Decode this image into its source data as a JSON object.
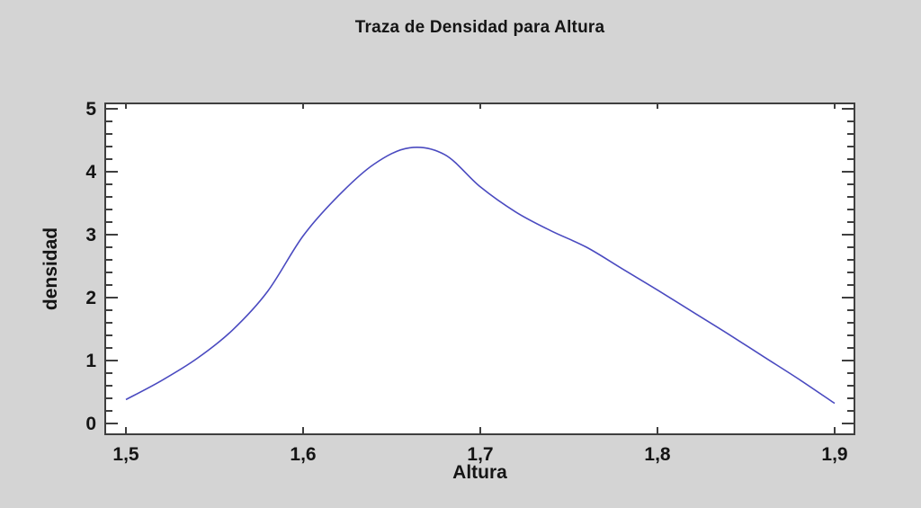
{
  "chart_data": {
    "type": "line",
    "title": "Traza de Densidad para Altura",
    "xlabel": "Altura",
    "ylabel": "densidad",
    "xlim": [
      1.5,
      1.9
    ],
    "ylim": [
      0,
      5
    ],
    "grid": false,
    "legend": false,
    "line_color": "#4a4ac0",
    "frame_color": "#3f3f3f",
    "background_color": "#d4d4d4",
    "panel_color": "#ffffff",
    "x_ticks": {
      "values": [
        1.5,
        1.6,
        1.7,
        1.8,
        1.9
      ],
      "labels": [
        "1,5",
        "1,6",
        "1,7",
        "1,8",
        "1,9"
      ]
    },
    "y_ticks": {
      "values": [
        0,
        1,
        2,
        3,
        4,
        5
      ],
      "labels": [
        "0",
        "1",
        "2",
        "3",
        "4",
        "5"
      ]
    },
    "y_minor_step": 0.2,
    "series": [
      {
        "name": "densidad",
        "x": [
          1.5,
          1.52,
          1.54,
          1.56,
          1.58,
          1.6,
          1.62,
          1.64,
          1.66,
          1.68,
          1.7,
          1.72,
          1.74,
          1.76,
          1.78,
          1.8,
          1.82,
          1.84,
          1.86,
          1.88,
          1.9
        ],
        "y": [
          0.38,
          0.68,
          1.03,
          1.48,
          2.1,
          2.98,
          3.62,
          4.12,
          4.38,
          4.27,
          3.76,
          3.36,
          3.06,
          2.8,
          2.46,
          2.12,
          1.77,
          1.42,
          1.06,
          0.7,
          0.32
        ]
      }
    ]
  }
}
